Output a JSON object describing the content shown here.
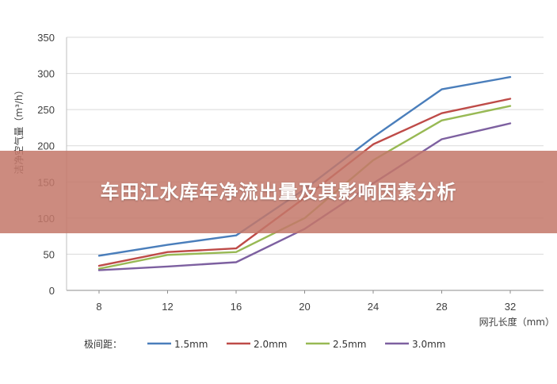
{
  "banner": {
    "title": "车田江水库年净流出量及其影响因素分析"
  },
  "chart_data": {
    "type": "line",
    "title": "",
    "xlabel": "网孔长度（mm）",
    "ylabel": "洁净空气量（m³/h）",
    "x": [
      8,
      12,
      16,
      20,
      24,
      28,
      32
    ],
    "ylim": [
      0,
      350
    ],
    "yticks": [
      0,
      50,
      100,
      150,
      200,
      250,
      300,
      350
    ],
    "grid": true,
    "legend_title": "极间距：",
    "legend_position": "bottom",
    "series": [
      {
        "name": "1.5mm",
        "color": "#4a7ebb",
        "values": [
          48,
          63,
          76,
          140,
          212,
          278,
          295
        ]
      },
      {
        "name": "2.0mm",
        "color": "#be4b48",
        "values": [
          34,
          53,
          58,
          128,
          202,
          245,
          265
        ]
      },
      {
        "name": "2.5mm",
        "color": "#98b954",
        "values": [
          30,
          49,
          53,
          100,
          180,
          235,
          255
        ]
      },
      {
        "name": "3.0mm",
        "color": "#7d60a0",
        "values": [
          28,
          33,
          39,
          85,
          148,
          209,
          231
        ]
      }
    ]
  }
}
